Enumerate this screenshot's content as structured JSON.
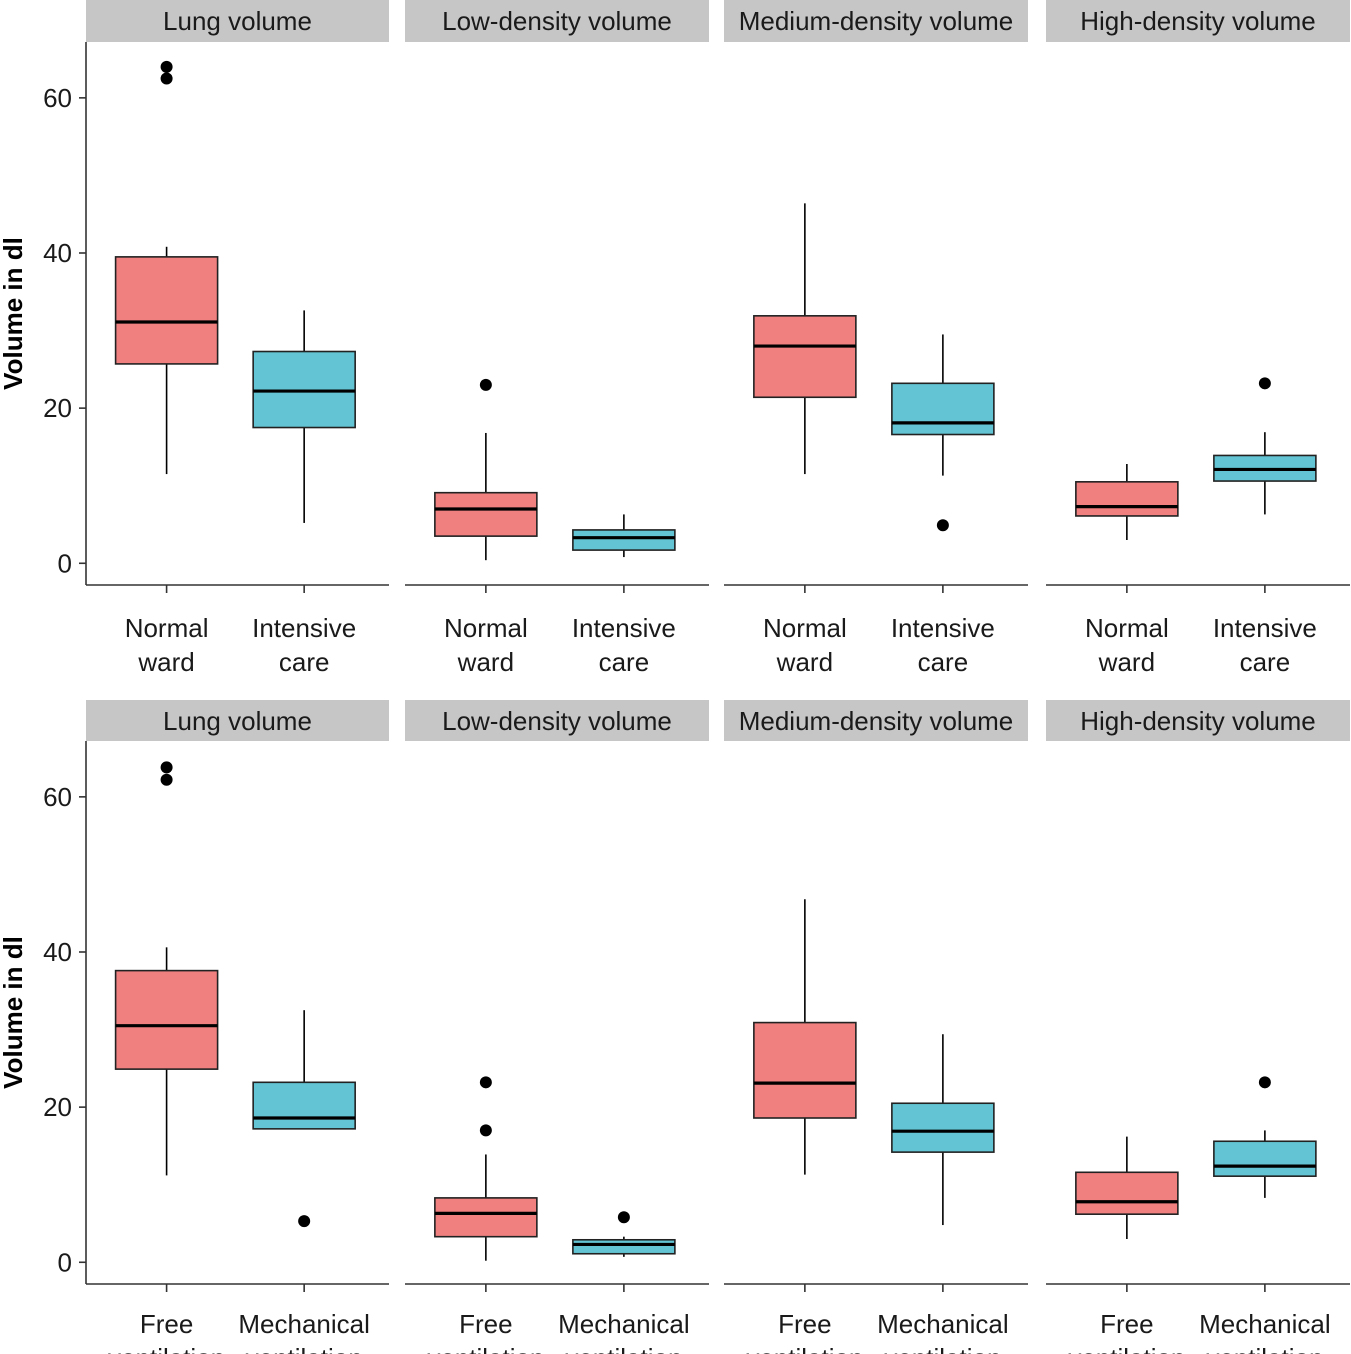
{
  "chart_data": [
    {
      "type": "box",
      "ylabel": "Volume in dl",
      "yticks": [
        0,
        20,
        40,
        60
      ],
      "ylim": [
        -2.8,
        67.2
      ],
      "categories": [
        [
          "Normal",
          "ward"
        ],
        [
          "Intensive",
          "care"
        ]
      ],
      "colors": {
        "first": "#F08080",
        "second": "#63C5D3"
      },
      "panels": [
        {
          "title": "Lung volume",
          "boxes": [
            {
              "q1": 25.7,
              "median": 31.1,
              "q3": 39.5,
              "whisker_low": 11.5,
              "whisker_high": 40.8,
              "outliers": [
                62.5,
                64.0
              ]
            },
            {
              "q1": 17.5,
              "median": 22.2,
              "q3": 27.3,
              "whisker_low": 5.2,
              "whisker_high": 32.6,
              "outliers": []
            }
          ]
        },
        {
          "title": "Low-density volume",
          "boxes": [
            {
              "q1": 3.5,
              "median": 7.0,
              "q3": 9.1,
              "whisker_low": 0.4,
              "whisker_high": 16.8,
              "outliers": [
                23.0
              ]
            },
            {
              "q1": 1.7,
              "median": 3.3,
              "q3": 4.3,
              "whisker_low": 0.8,
              "whisker_high": 6.3,
              "outliers": []
            }
          ]
        },
        {
          "title": "Medium-density volume",
          "boxes": [
            {
              "q1": 21.4,
              "median": 28.0,
              "q3": 31.9,
              "whisker_low": 11.5,
              "whisker_high": 46.4,
              "outliers": []
            },
            {
              "q1": 16.6,
              "median": 18.1,
              "q3": 23.2,
              "whisker_low": 11.3,
              "whisker_high": 29.5,
              "outliers": [
                4.9
              ]
            }
          ]
        },
        {
          "title": "High-density volume",
          "boxes": [
            {
              "q1": 6.1,
              "median": 7.3,
              "q3": 10.5,
              "whisker_low": 3.0,
              "whisker_high": 12.8,
              "outliers": []
            },
            {
              "q1": 10.6,
              "median": 12.1,
              "q3": 13.9,
              "whisker_low": 6.3,
              "whisker_high": 16.9,
              "outliers": [
                23.2
              ]
            }
          ]
        }
      ]
    },
    {
      "type": "box",
      "ylabel": "Volume in dl",
      "yticks": [
        0,
        20,
        40,
        60
      ],
      "ylim": [
        -2.8,
        67.2
      ],
      "categories": [
        [
          "Free",
          "ventilation"
        ],
        [
          "Mechanical",
          "ventilation"
        ]
      ],
      "colors": {
        "first": "#F08080",
        "second": "#63C5D3"
      },
      "panels": [
        {
          "title": "Lung volume",
          "boxes": [
            {
              "q1": 24.9,
              "median": 30.5,
              "q3": 37.6,
              "whisker_low": 11.2,
              "whisker_high": 40.6,
              "outliers": [
                62.2,
                63.8
              ]
            },
            {
              "q1": 17.2,
              "median": 18.6,
              "q3": 23.2,
              "whisker_low": 17.2,
              "whisker_high": 32.5,
              "outliers": [
                5.3
              ]
            }
          ]
        },
        {
          "title": "Low-density volume",
          "boxes": [
            {
              "q1": 3.3,
              "median": 6.3,
              "q3": 8.3,
              "whisker_low": 0.2,
              "whisker_high": 13.9,
              "outliers": [
                17.0,
                23.2
              ]
            },
            {
              "q1": 1.1,
              "median": 2.3,
              "q3": 2.9,
              "whisker_low": 0.7,
              "whisker_high": 3.3,
              "outliers": [
                5.8
              ]
            }
          ]
        },
        {
          "title": "Medium-density volume",
          "boxes": [
            {
              "q1": 18.6,
              "median": 23.1,
              "q3": 30.9,
              "whisker_low": 11.3,
              "whisker_high": 46.8,
              "outliers": []
            },
            {
              "q1": 14.2,
              "median": 16.9,
              "q3": 20.5,
              "whisker_low": 4.8,
              "whisker_high": 29.4,
              "outliers": []
            }
          ]
        },
        {
          "title": "High-density volume",
          "boxes": [
            {
              "q1": 6.2,
              "median": 7.8,
              "q3": 11.6,
              "whisker_low": 3.0,
              "whisker_high": 16.2,
              "outliers": []
            },
            {
              "q1": 11.1,
              "median": 12.4,
              "q3": 15.6,
              "whisker_low": 8.3,
              "whisker_high": 17.0,
              "outliers": [
                23.2
              ]
            }
          ]
        }
      ]
    }
  ]
}
